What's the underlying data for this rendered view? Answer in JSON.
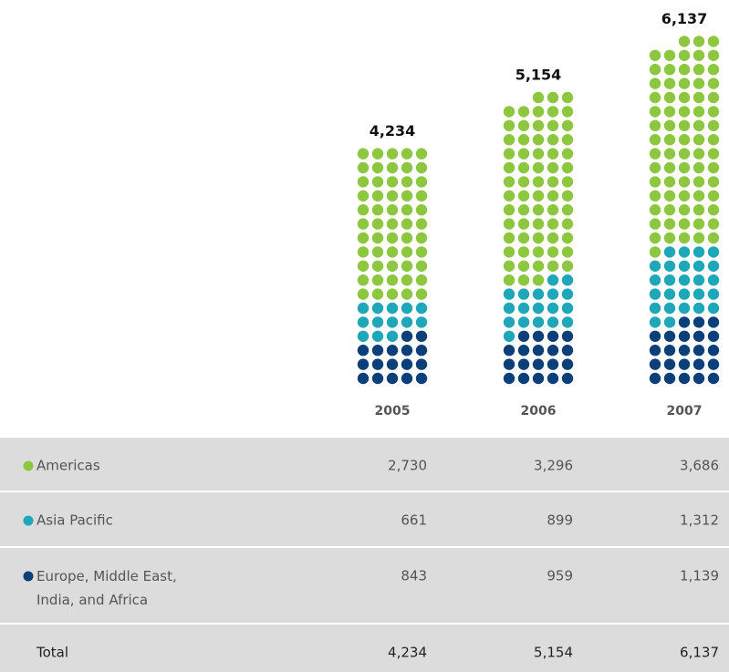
{
  "chart_data": {
    "type": "dot",
    "categories": [
      "2005",
      "2006",
      "2007"
    ],
    "series": [
      {
        "name": "Americas",
        "color": "#8dc63f",
        "values": [
          2730,
          3296,
          3686
        ],
        "value_labels": [
          "2,730",
          "3,296",
          "3,686"
        ]
      },
      {
        "name": "Asia Pacific",
        "color": "#1ea7b8",
        "values": [
          661,
          899,
          1312
        ],
        "value_labels": [
          "661",
          "899",
          "1,312"
        ]
      },
      {
        "name": "Europe, Middle East, India, and Africa",
        "color": "#0b3f7a",
        "values": [
          843,
          959,
          1139
        ],
        "value_labels": [
          "843",
          "959",
          "1,139"
        ]
      }
    ],
    "total_name": "Total",
    "totals": [
      4234,
      5154,
      6137
    ],
    "total_labels": [
      "4,234",
      "5,154",
      "6,137"
    ]
  }
}
